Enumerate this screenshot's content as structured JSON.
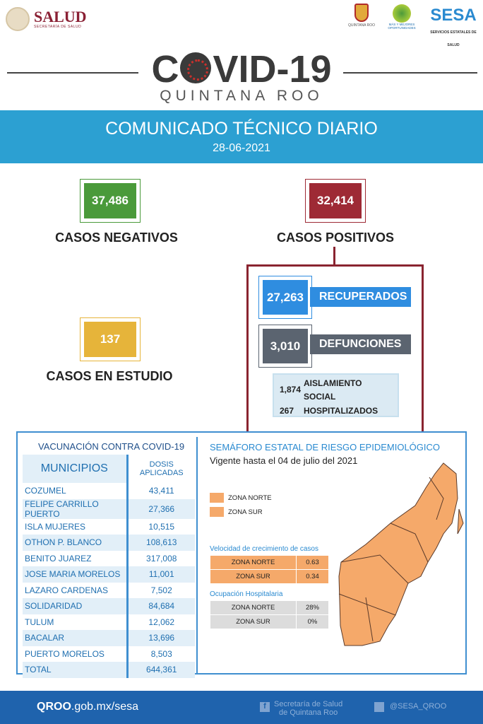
{
  "header": {
    "salud": "SALUD",
    "salud_sub": "SECRETARÍA DE SALUD",
    "qroo": "QUINTANA ROO",
    "tree": "MÁS Y MEJORES OPORTUNIDADES",
    "sesa": "SESA",
    "sesa_sub": "SERVICIOS ESTATALES DE SALUD"
  },
  "title": {
    "covid_a": "C",
    "covid_b": "VID-19",
    "region": "QUINTANA ROO",
    "band": "COMUNICADO TÉCNICO DIARIO",
    "date": "28-06-2021"
  },
  "stats": {
    "negativos": "37,486",
    "negativos_label": "CASOS NEGATIVOS",
    "positivos": "32,414",
    "positivos_label": "CASOS POSITIVOS",
    "estudio": "137",
    "estudio_label": "CASOS EN ESTUDIO",
    "recuperados": "27,263",
    "recuperados_label": "RECUPERADOS",
    "defunciones": "3,010",
    "defunciones_label": "DEFUNCIONES",
    "aislamiento": "1,874",
    "aislamiento_label1": "AISLAMIENTO",
    "aislamiento_label2": "SOCIAL",
    "hospitalizados": "267",
    "hospitalizados_label": "HOSPITALIZADOS"
  },
  "vacunacion": {
    "title": "VACUNACIÓN CONTRA COVID-19",
    "col_mun": "MUNICIPIOS",
    "col_dosis1": "DOSIS",
    "col_dosis2": "APLICADAS",
    "rows": [
      [
        "COZUMEL",
        "43,411"
      ],
      [
        "FELIPE CARRILLO PUERTO",
        "27,366"
      ],
      [
        "ISLA MUJERES",
        "10,515"
      ],
      [
        "OTHON P. BLANCO",
        "108,613"
      ],
      [
        "BENITO JUAREZ",
        "317,008"
      ],
      [
        "JOSE MARIA MORELOS",
        "11,001"
      ],
      [
        "LAZARO CARDENAS",
        "7,502"
      ],
      [
        "SOLIDARIDAD",
        "84,684"
      ],
      [
        "TULUM",
        "12,062"
      ],
      [
        "BACALAR",
        "13,696"
      ],
      [
        "PUERTO MORELOS",
        "8,503"
      ],
      [
        "TOTAL",
        "644,361"
      ]
    ]
  },
  "semaforo": {
    "title": "SEMÁFORO ESTATAL DE RIESGO EPIDEMIOLÓGICO",
    "vigente": "Vigente hasta el 04 de julio del 2021",
    "legend": [
      "ZONA NORTE",
      "ZONA SUR"
    ],
    "color": "#f5a96a",
    "velocidad_title": "Velocidad de crecimiento de casos",
    "velocidad": [
      [
        "ZONA NORTE",
        "0.63"
      ],
      [
        "ZONA SUR",
        "0.34"
      ]
    ],
    "ocupacion_title": "Ocupación Hospitalaria",
    "ocupacion": [
      [
        "ZONA NORTE",
        "28%"
      ],
      [
        "ZONA SUR",
        "0%"
      ]
    ]
  },
  "footer": {
    "site_bold": "QROO",
    "site_rest": ".gob.mx/sesa",
    "fb1": "Secretaría de Salud",
    "fb2": "de Quintana Roo",
    "tw": "@SESA_QROO"
  }
}
